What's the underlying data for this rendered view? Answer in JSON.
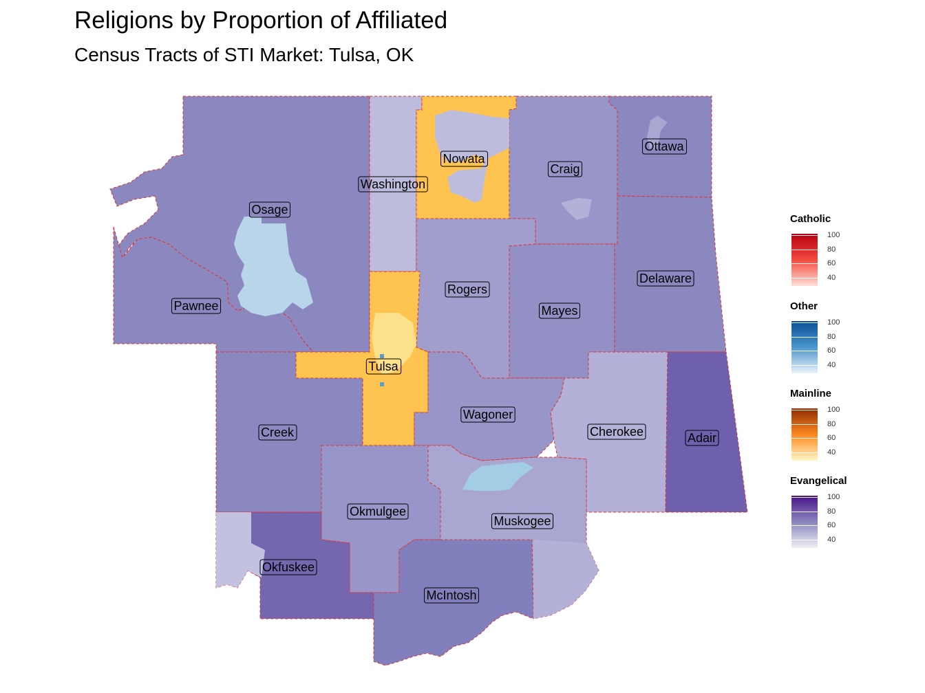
{
  "title": "Religions by Proportion of Affiliated",
  "subtitle": "Census Tracts of STI Market: Tulsa, OK",
  "counties": [
    {
      "name": "Osage",
      "religion": "Evangelical",
      "color": "#8b88c0"
    },
    {
      "name": "Pawnee",
      "religion": "Evangelical",
      "color": "#8b88c0"
    },
    {
      "name": "Washington",
      "religion": "Evangelical",
      "color": "#bebcdc"
    },
    {
      "name": "Nowata",
      "religion": "Mainline",
      "color": "#fec44f"
    },
    {
      "name": "Craig",
      "religion": "Evangelical",
      "color": "#9896c8"
    },
    {
      "name": "Ottawa",
      "religion": "Evangelical",
      "color": "#8b88c0"
    },
    {
      "name": "Rogers",
      "religion": "Evangelical",
      "color": "#a19ecd"
    },
    {
      "name": "Mayes",
      "religion": "Evangelical",
      "color": "#9390c5"
    },
    {
      "name": "Delaware",
      "religion": "Evangelical",
      "color": "#8b88c0"
    },
    {
      "name": "Tulsa",
      "religion": "Mainline",
      "color": "#fec44f"
    },
    {
      "name": "Creek",
      "religion": "Evangelical",
      "color": "#8b88c0"
    },
    {
      "name": "Wagoner",
      "religion": "Evangelical",
      "color": "#9896c8"
    },
    {
      "name": "Cherokee",
      "religion": "Evangelical",
      "color": "#b3b1d8"
    },
    {
      "name": "Adair",
      "religion": "Evangelical",
      "color": "#6f60ad"
    },
    {
      "name": "Okmulgee",
      "religion": "Evangelical",
      "color": "#9896c8"
    },
    {
      "name": "Muskogee",
      "religion": "Evangelical",
      "color": "#a9a7d2"
    },
    {
      "name": "Okfuskee",
      "religion": "Evangelical",
      "color": "#7566b0"
    },
    {
      "name": "McIntosh",
      "religion": "Evangelical",
      "color": "#8280bc"
    }
  ],
  "legend": [
    {
      "title": "Catholic",
      "ticks": [
        "100",
        "80",
        "60",
        "40"
      ],
      "color_high": "#b30010",
      "color_mid": "#f44b40",
      "color_low": "#fee0d8"
    },
    {
      "title": "Other",
      "ticks": [
        "100",
        "80",
        "60",
        "40"
      ],
      "color_high": "#084d96",
      "color_mid": "#4b96cb",
      "color_low": "#eaf2fb"
    },
    {
      "title": "Mainline",
      "ticks": [
        "100",
        "80",
        "60",
        "40"
      ],
      "color_high": "#8c2d04",
      "color_mid": "#fe8820",
      "color_low": "#fff7c4"
    },
    {
      "title": "Evangelical",
      "ticks": [
        "100",
        "80",
        "60",
        "40"
      ],
      "color_high": "#4a1486",
      "color_mid": "#8a86bf",
      "color_low": "#f0eff6"
    }
  ],
  "colors": {
    "border": "#e03030",
    "other_light": "#b8d5ea",
    "mainline_light": "#fde08a"
  }
}
